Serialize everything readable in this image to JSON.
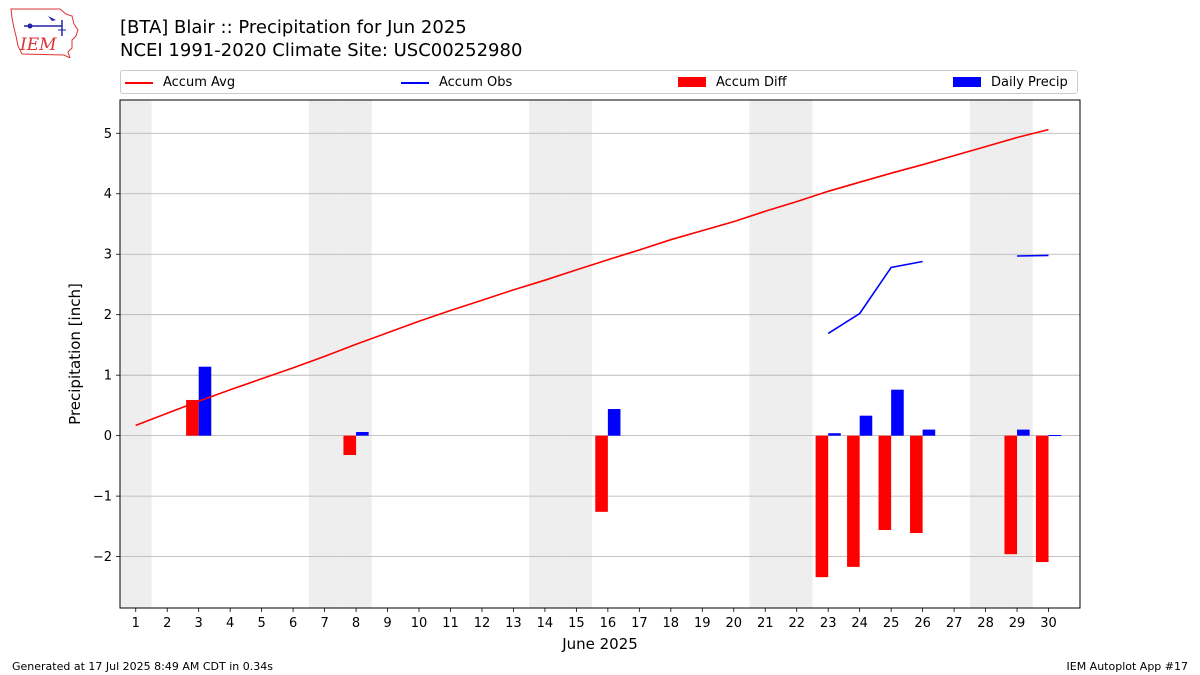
{
  "header": {
    "title_line1": "[BTA] Blair :: Precipitation for Jun 2025",
    "title_line2": "NCEI 1991-2020 Climate Site: USC00252980",
    "logo_text": "IEM"
  },
  "footer": {
    "left": "Generated at 17 Jul 2025 8:49 AM CDT in 0.34s",
    "right": "IEM Autoplot App #17"
  },
  "colors": {
    "accum_avg": "#ff0000",
    "accum_obs": "#0000ff",
    "accum_diff": "#ff0000",
    "daily_precip": "#0000ff",
    "weekend_shade": "#eeeeee",
    "grid": "#b0b0b0"
  },
  "chart_data": {
    "type": "bar",
    "xlabel": "June 2025",
    "ylabel": "Precipitation [inch]",
    "xlim": [
      0.5,
      31.0
    ],
    "ylim": [
      -2.85,
      5.55
    ],
    "yticks": [
      -2,
      -1,
      0,
      1,
      2,
      3,
      4,
      5
    ],
    "grid": true,
    "legend_position": "top",
    "weekend_shading_days": [
      1,
      7,
      8,
      14,
      15,
      21,
      22,
      28,
      29
    ],
    "days": [
      1,
      2,
      3,
      4,
      5,
      6,
      7,
      8,
      9,
      10,
      11,
      12,
      13,
      14,
      15,
      16,
      17,
      18,
      19,
      20,
      21,
      22,
      23,
      24,
      25,
      26,
      27,
      28,
      29,
      30
    ],
    "series": [
      {
        "name": "Accum Avg",
        "kind": "line",
        "values": [
          0.17,
          0.37,
          0.57,
          0.76,
          0.94,
          1.12,
          1.31,
          1.51,
          1.7,
          1.89,
          2.07,
          2.24,
          2.41,
          2.57,
          2.74,
          2.91,
          3.07,
          3.24,
          3.39,
          3.54,
          3.71,
          3.87,
          4.04,
          4.19,
          4.34,
          4.48,
          4.63,
          4.78,
          4.93,
          5.06
        ]
      },
      {
        "name": "Accum Obs",
        "kind": "line",
        "values": [
          null,
          null,
          null,
          null,
          null,
          null,
          null,
          null,
          null,
          null,
          null,
          null,
          null,
          null,
          null,
          null,
          null,
          null,
          null,
          null,
          null,
          null,
          1.69,
          2.02,
          2.78,
          2.88,
          null,
          null,
          2.97,
          2.98
        ]
      },
      {
        "name": "Accum Diff",
        "kind": "bar",
        "values": [
          0,
          0,
          0.59,
          0,
          0,
          0,
          0,
          -0.32,
          0,
          0,
          0,
          0,
          0,
          0,
          0,
          -1.26,
          0,
          0,
          0,
          0,
          0,
          0,
          -2.34,
          -2.17,
          -1.56,
          -1.61,
          0,
          0,
          -1.96,
          -2.09
        ]
      },
      {
        "name": "Daily Precip",
        "kind": "bar",
        "values": [
          0,
          0,
          1.14,
          0,
          0,
          0,
          0,
          0.06,
          0,
          0,
          0,
          0,
          0,
          0,
          0,
          0.44,
          0,
          0,
          0,
          0,
          0,
          0,
          0.04,
          0.33,
          0.76,
          0.1,
          0,
          0,
          0.1,
          0.01
        ]
      }
    ]
  }
}
